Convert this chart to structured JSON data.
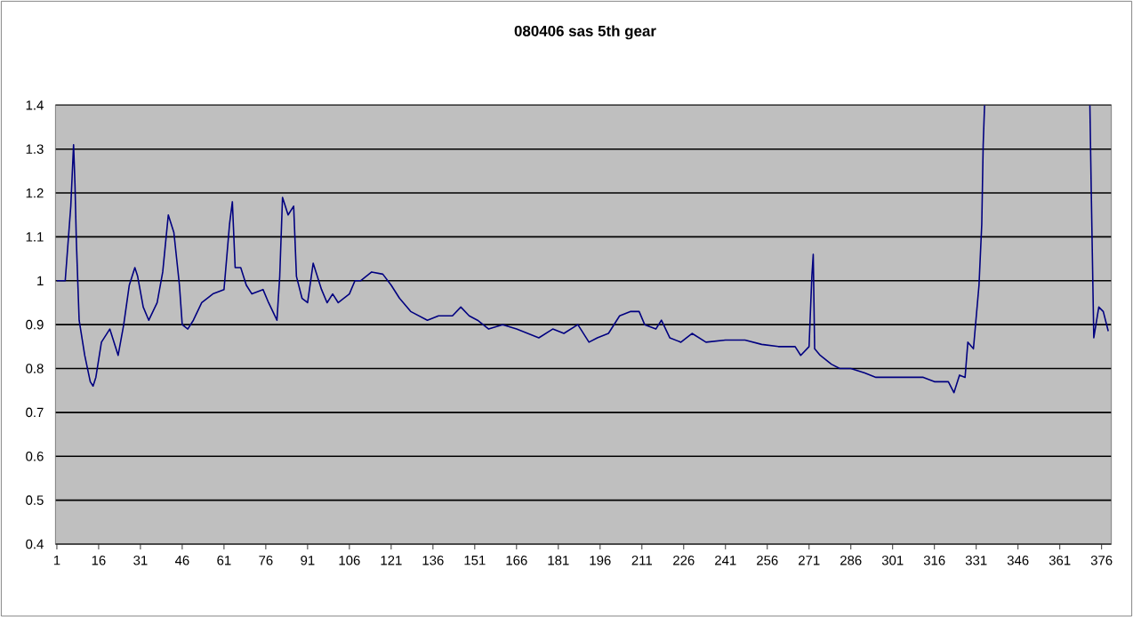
{
  "chart_data": {
    "type": "line",
    "title": "080406 sas 5th gear",
    "x": [
      1,
      4,
      6,
      7,
      7.5,
      8,
      9,
      11,
      13,
      14,
      15,
      17,
      20,
      22,
      23,
      25,
      27,
      29,
      30,
      32,
      34,
      37,
      39,
      41,
      43,
      45,
      46,
      48,
      50,
      53,
      57,
      61,
      63,
      64,
      65,
      67,
      69,
      71,
      75,
      77,
      80,
      81,
      82,
      84,
      86,
      87,
      89,
      91,
      93,
      96,
      98,
      100,
      102,
      106,
      108,
      110,
      114,
      118,
      121,
      124,
      128,
      134,
      138,
      143,
      146,
      149,
      152,
      156,
      161,
      166,
      170,
      174,
      179,
      183,
      188,
      192,
      195,
      199,
      203,
      207,
      210,
      212,
      216,
      218,
      221,
      225,
      229,
      234,
      241,
      248,
      254,
      260,
      266,
      268,
      271,
      272,
      272.5,
      273,
      275,
      279,
      282,
      286,
      291,
      295,
      299,
      306,
      312,
      316,
      321,
      323,
      325,
      327,
      328,
      330,
      332,
      333,
      333.5,
      334,
      352,
      371.8,
      372.3,
      373.2,
      375,
      376.6,
      378.4
    ],
    "values": [
      1.0,
      1.0,
      1.17,
      1.31,
      1.22,
      1.09,
      0.91,
      0.83,
      0.77,
      0.76,
      0.78,
      0.86,
      0.89,
      0.85,
      0.83,
      0.9,
      0.99,
      1.03,
      1.01,
      0.94,
      0.91,
      0.95,
      1.02,
      1.15,
      1.11,
      0.99,
      0.9,
      0.89,
      0.91,
      0.95,
      0.97,
      0.98,
      1.13,
      1.18,
      1.03,
      1.03,
      0.99,
      0.97,
      0.98,
      0.95,
      0.91,
      1.01,
      1.19,
      1.15,
      1.17,
      1.01,
      0.96,
      0.95,
      1.04,
      0.98,
      0.95,
      0.97,
      0.95,
      0.97,
      1.0,
      1.0,
      1.02,
      1.015,
      0.99,
      0.96,
      0.93,
      0.91,
      0.92,
      0.92,
      0.94,
      0.92,
      0.91,
      0.89,
      0.9,
      0.89,
      0.88,
      0.87,
      0.89,
      0.88,
      0.9,
      0.86,
      0.87,
      0.88,
      0.92,
      0.93,
      0.93,
      0.9,
      0.89,
      0.91,
      0.87,
      0.86,
      0.88,
      0.86,
      0.865,
      0.865,
      0.855,
      0.85,
      0.85,
      0.83,
      0.85,
      1.01,
      1.06,
      0.845,
      0.83,
      0.81,
      0.8,
      0.8,
      0.79,
      0.78,
      0.78,
      0.78,
      0.78,
      0.77,
      0.77,
      0.745,
      0.785,
      0.78,
      0.86,
      0.845,
      0.99,
      1.13,
      1.31,
      1.4,
      null,
      1.4,
      1.2,
      0.87,
      0.94,
      0.93,
      0.885
    ],
    "color": "#000080",
    "xlim": [
      0.5,
      379.5
    ],
    "ylim": [
      0.4,
      1.4
    ],
    "xticks": [
      1,
      16,
      31,
      46,
      61,
      76,
      91,
      106,
      121,
      136,
      151,
      166,
      181,
      196,
      211,
      226,
      241,
      256,
      271,
      286,
      301,
      316,
      331,
      346,
      361,
      376
    ],
    "yticks": [
      0.4,
      0.5,
      0.6,
      0.7,
      0.8,
      0.9,
      1,
      1.1,
      1.2,
      1.3,
      1.4
    ],
    "grid": "y"
  }
}
